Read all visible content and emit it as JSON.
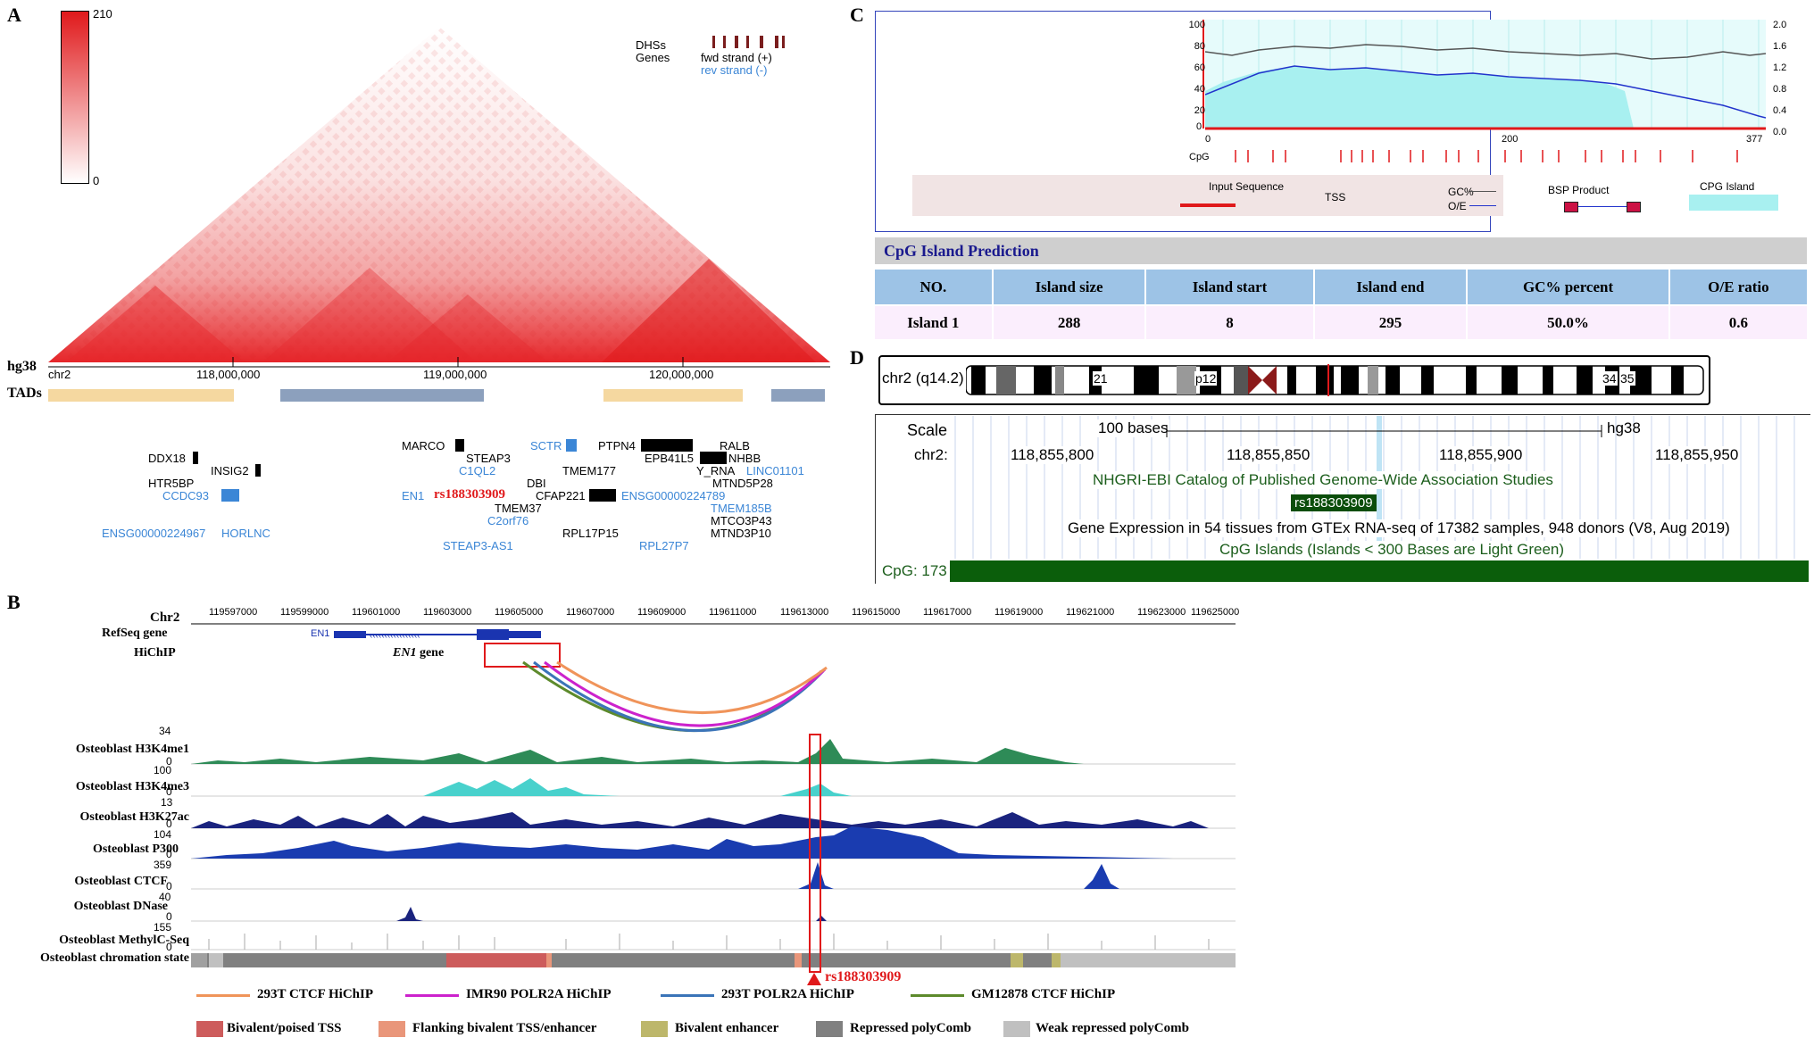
{
  "panels": {
    "a": "A",
    "b": "B",
    "c": "C",
    "d": "D"
  },
  "panel_a": {
    "colorbar": {
      "max": "210",
      "min": "0"
    },
    "legend": {
      "dhss": "DHSs",
      "genes": "Genes",
      "fwd": "fwd strand (+)",
      "rev": "rev strand (-)"
    },
    "assembly": "hg38",
    "chrom": "chr2",
    "ticks": [
      "118,000,000",
      "119,000,000",
      "120,000,000"
    ],
    "tads_label": "TADs",
    "genes": {
      "g1": "DDX18",
      "g2": "INSIG2",
      "g3": "HTR5BP",
      "g4": "CCDC93",
      "g5": "ENSG00000224967",
      "g6": "HORLNC",
      "g7": "MARCO",
      "g8": "STEAP3",
      "g9": "SCTR",
      "g10": "C1QL2",
      "g11": "PTPN4",
      "g12": "RALB",
      "g13": "EPB41L5",
      "g14": "NHBB",
      "g15": "TMEM177",
      "g16": "Y_RNA",
      "g17": "LINC01101",
      "g18": "DBI",
      "g19": "MTND5P28",
      "g20": "EN1",
      "g21": "rs188303909",
      "g22": "CFAP221",
      "g23": "ENSG00000224789",
      "g24": "TMEM37",
      "g25": "TMEM185B",
      "g26": "C2orf76",
      "g27": "MTCO3P43",
      "g28": "RPL17P15",
      "g29": "MTND3P10",
      "g30": "STEAP3-AS1",
      "g31": "RPL27P7"
    }
  },
  "panel_b": {
    "chrom": "Chr2",
    "ticks": [
      "119597000",
      "119599000",
      "119601000",
      "119603000",
      "119605000",
      "119607000",
      "119609000",
      "119611000",
      "119613000",
      "119615000",
      "119617000",
      "119619000",
      "119621000",
      "119623000",
      "119625000"
    ],
    "refseq_label": "RefSeq gene",
    "en1_gene_label": "EN1",
    "hichip_label": "HiChIP",
    "en1_box_label": "EN1",
    "en1_box_suffix": " gene",
    "tracks": [
      {
        "label": "Osteoblast H3K4me1",
        "max": "34",
        "min": "0"
      },
      {
        "label": "Osteoblast H3K4me3",
        "max": "100",
        "min": "0"
      },
      {
        "label": "Osteoblast H3K27ac",
        "max": "13",
        "min": "0"
      },
      {
        "label": "Osteoblast P300",
        "max": "104",
        "min": "0"
      },
      {
        "label": "Osteoblast  CTCF",
        "max": "359",
        "min": "0"
      },
      {
        "label": "Osteoblast  DNase",
        "max": "40",
        "min": "0"
      },
      {
        "label": "Osteoblast  MethylC-Seq",
        "max": "155",
        "min": "0"
      },
      {
        "label": "Osteoblast  chromation state",
        "max": "",
        "min": ""
      }
    ],
    "snp": "rs188303909",
    "legend_lines": [
      {
        "label": "293T CTCF HiChIP",
        "color": "#f0945a"
      },
      {
        "label": "IMR90 POLR2A HiChIP",
        "color": "#cc22cc"
      },
      {
        "label": "293T  POLR2A HiChIP",
        "color": "#3b74b8"
      },
      {
        "label": "GM12878 CTCF HiChIP",
        "color": "#5d8a2c"
      }
    ],
    "legend_states": [
      {
        "label": "Bivalent/poised TSS",
        "color": "#cd5c5c"
      },
      {
        "label": "Flanking bivalent TSS/enhancer",
        "color": "#e9967a"
      },
      {
        "label": "Bivalent enhancer",
        "color": "#bdb76b"
      },
      {
        "label": "Repressed polyComb",
        "color": "#808080"
      },
      {
        "label": "Weak repressed polyComb",
        "color": "#c0c0c0"
      }
    ]
  },
  "panel_c": {
    "y_left": [
      "100",
      "80",
      "60",
      "40",
      "20",
      "0"
    ],
    "y_right": [
      "2.0",
      "1.6",
      "1.2",
      "0.8",
      "0.4",
      "0.0"
    ],
    "x_ticks": [
      "0",
      "200",
      "377"
    ],
    "cpg_label": "CpG",
    "legend": {
      "input": "Input Sequence",
      "tss": "TSS",
      "gc": "GC%",
      "oe": "O/E",
      "bsp": "BSP Product",
      "island": "CPG Island"
    },
    "table_title": "CpG Island Prediction",
    "headers": [
      "NO.",
      "Island size",
      "Island start",
      "Island end",
      "GC% percent",
      "O/E ratio"
    ],
    "row": [
      "Island 1",
      "288",
      "8",
      "295",
      "50.0%",
      "0.6"
    ]
  },
  "panel_d": {
    "ideogram_label": "chr2 (q14.2)",
    "band_labels": {
      "b21": "21",
      "p12": "p12",
      "b34": "34",
      "b35": "35"
    },
    "scale_label": "Scale",
    "scale_value": "100 bases",
    "assembly": "hg38",
    "chrom_label": "chr2:",
    "positions": [
      "118,855,800",
      "118,855,850",
      "118,855,900",
      "118,855,950"
    ],
    "gwas_title": "NHGRI-EBI Catalog of Published Genome-Wide Association Studies",
    "snp": "rs188303909",
    "gtex": "Gene Expression in 54 tissues from GTEx RNA-seq of 17382 samples, 948 donors (V8, Aug 2019)",
    "cpg_islands": "CpG Islands (Islands < 300 Bases are Light Green)",
    "cpg_bar": "CpG: 173"
  }
}
